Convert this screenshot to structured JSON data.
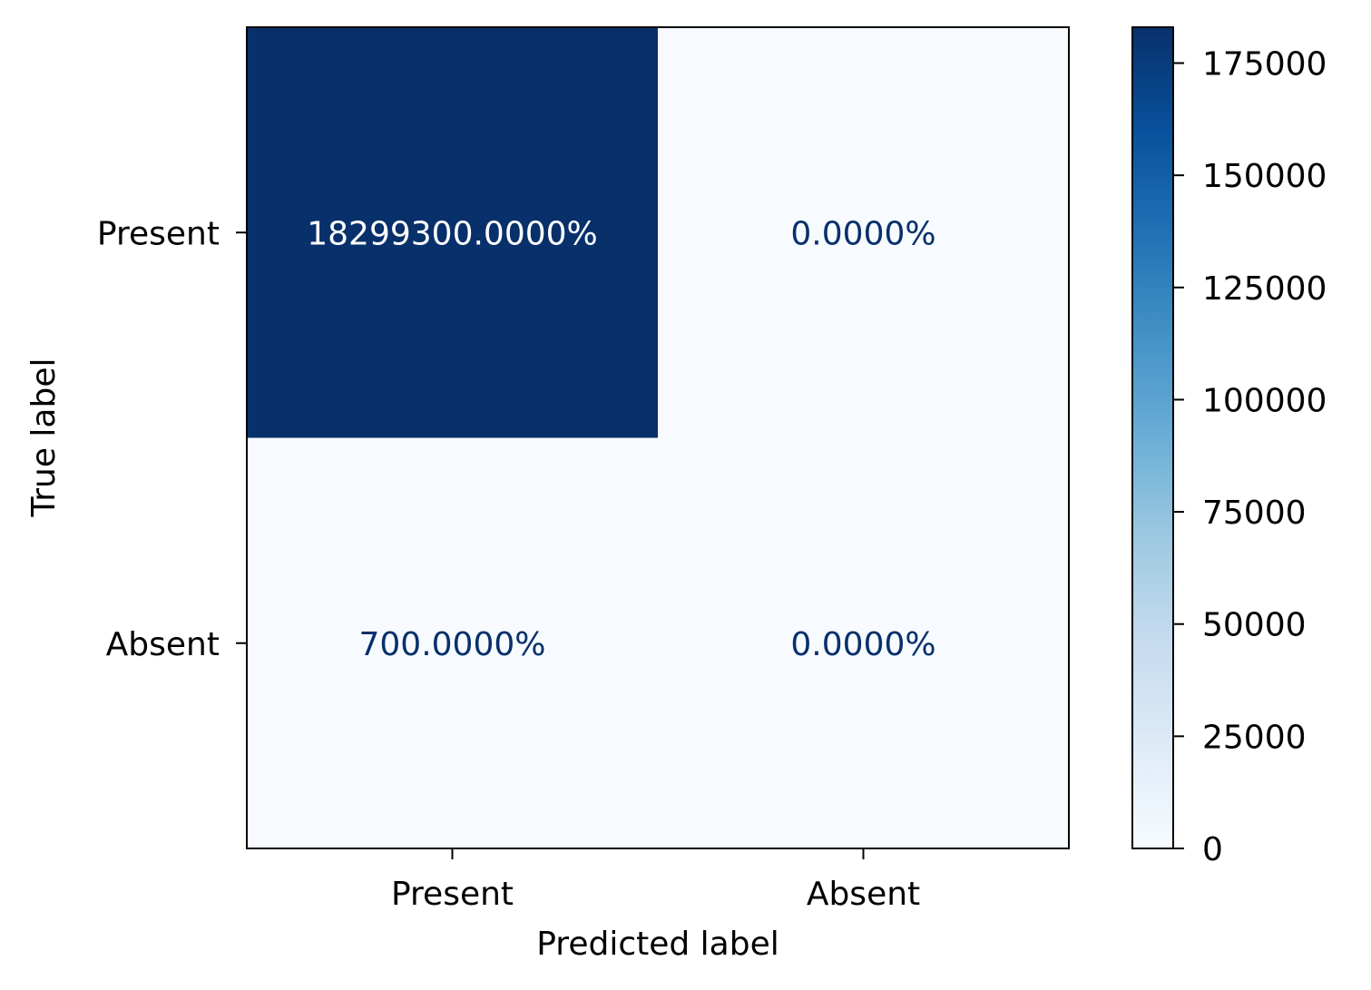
{
  "chart_data": {
    "type": "heatmap",
    "title": "",
    "xlabel": "Predicted label",
    "ylabel": "True label",
    "row_labels": [
      "Present",
      "Absent"
    ],
    "col_labels": [
      "Present",
      "Absent"
    ],
    "values": [
      [
        182993,
        0
      ],
      [
        7,
        0
      ]
    ],
    "cell_text": [
      [
        "18299300.0000%",
        "0.0000%"
      ],
      [
        "700.0000%",
        "0.0000%"
      ]
    ],
    "colormap": "Blues",
    "colorbar": {
      "vmin": 0,
      "vmax": 182993,
      "ticks": [
        0,
        25000,
        50000,
        75000,
        100000,
        125000,
        150000,
        175000
      ]
    },
    "colors": {
      "low": "#f7fbff",
      "high": "#08306b",
      "text_on_dark": "#ffffff",
      "text_on_light": "#08306b"
    }
  }
}
